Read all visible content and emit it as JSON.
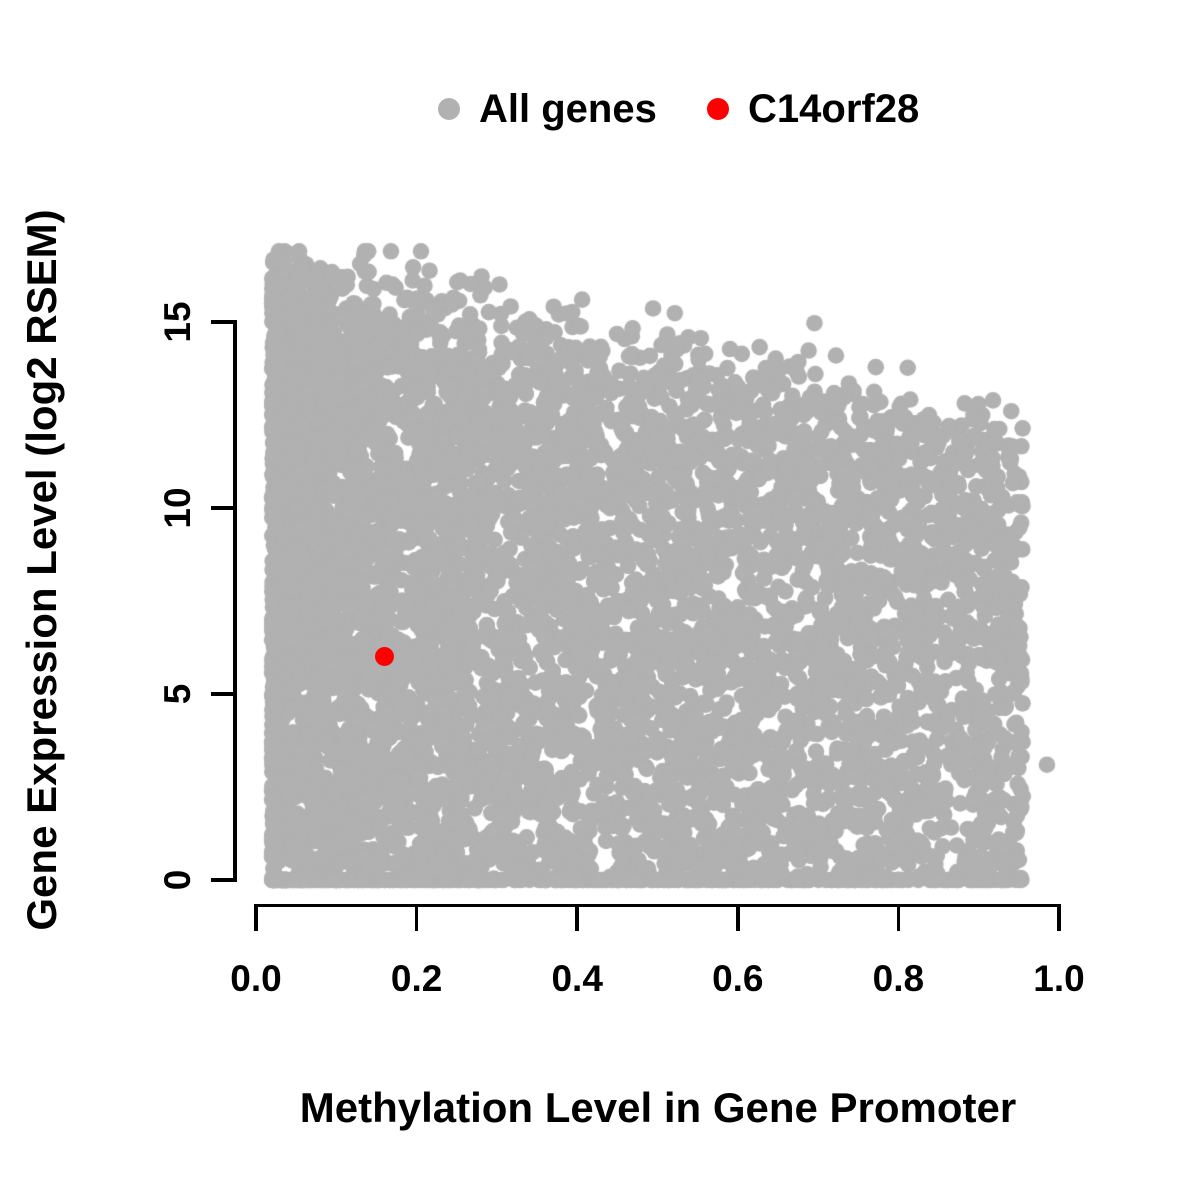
{
  "chart_data": {
    "type": "scatter",
    "title": "",
    "xlabel": "Methylation Level in Gene Promoter",
    "ylabel": "Gene Expression Level (log2 RSEM)",
    "xlim": [
      0.0,
      1.0
    ],
    "ylim": [
      0,
      16.9
    ],
    "grid": false,
    "legend_position": "top-center",
    "x_ticks": {
      "values": [
        0.0,
        0.2,
        0.4,
        0.6,
        0.8,
        1.0
      ],
      "labels": [
        "0.0",
        "0.2",
        "0.4",
        "0.6",
        "0.8",
        "1.0"
      ]
    },
    "y_ticks": {
      "values": [
        0,
        5,
        10,
        15
      ],
      "labels": [
        "0",
        "5",
        "10",
        "15"
      ]
    },
    "legend": [
      {
        "label": "All genes",
        "color": "#b1b1b1"
      },
      {
        "label": "C14orf28",
        "color": "#ff0000"
      }
    ],
    "series": [
      {
        "name": "All genes",
        "color": "#b1b1b1",
        "marker": "filled-circle",
        "point_radius_px": 8.3,
        "cloud": {
          "n": 7000,
          "seed": 20240,
          "x_range": [
            0.02,
            0.955
          ],
          "x_skew": 1.55,
          "zero_fraction": 0.07,
          "y_pow": 0.92,
          "envelope": {
            "intercept": 16.6,
            "slope": -5.0,
            "noise_sd": 0.55
          },
          "high_outlier_rate": 0.004,
          "high_outlier_extra": 1.3,
          "y_max": 16.9
        },
        "extra_points": [
          [
            0.985,
            3.1
          ]
        ],
        "summary": "Dense cloud of ~7000 genes; methylation 0.02-0.955 skewed toward low values; expression spans 0 up to an upper envelope declining from ~16.5 at methylation 0 to ~12 at methylation 0.95; solid row of points at expression 0."
      },
      {
        "name": "C14orf28",
        "color": "#ff0000",
        "marker": "filled-circle",
        "point_radius_px": 9.5,
        "points": [
          [
            0.16,
            6.0
          ]
        ]
      }
    ]
  }
}
